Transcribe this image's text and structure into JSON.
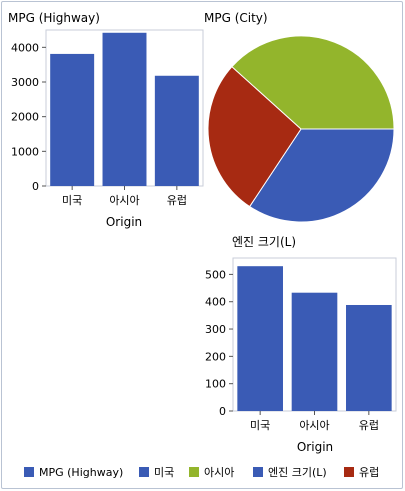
{
  "chart_data": [
    {
      "type": "bar",
      "title": "MPG (Highway)",
      "xlabel": "Origin",
      "ylabel": "",
      "categories": [
        "미국",
        "아시아",
        "유럽"
      ],
      "values": [
        3810,
        4420,
        3180
      ],
      "ylim": [
        0,
        4500
      ],
      "yticks": [
        0,
        1000,
        2000,
        3000,
        4000
      ],
      "color": "#3a5bb5"
    },
    {
      "type": "pie",
      "title": "MPG (City)",
      "slices": [
        {
          "label": "미국",
          "value": 0.3431,
          "color": "#3a5bb5"
        },
        {
          "label": "유럽",
          "value": 0.2737,
          "color": "#a72a12"
        },
        {
          "label": "아시아",
          "value": 0.3832,
          "color": "#93b52c"
        }
      ],
      "start_angle_deg": 0
    },
    {
      "type": "bar",
      "title": "엔진 크기(L)",
      "xlabel": "Origin",
      "ylabel": "",
      "categories": [
        "미국",
        "아시아",
        "유럽"
      ],
      "values": [
        530,
        433,
        388
      ],
      "ylim": [
        0,
        560
      ],
      "yticks": [
        0,
        100,
        200,
        300,
        400,
        500
      ],
      "color": "#3a5bb5"
    }
  ],
  "legend": {
    "placement": "bottom",
    "items": [
      {
        "label": "MPG (Highway)",
        "color": "#3a5bb5"
      },
      {
        "label": "미국",
        "color": "#3a5bb5"
      },
      {
        "label": "아시아",
        "color": "#93b52c"
      },
      {
        "label": "엔진 크기(L)",
        "color": "#3a5bb5"
      },
      {
        "label": "유럽",
        "color": "#a72a12"
      }
    ]
  }
}
